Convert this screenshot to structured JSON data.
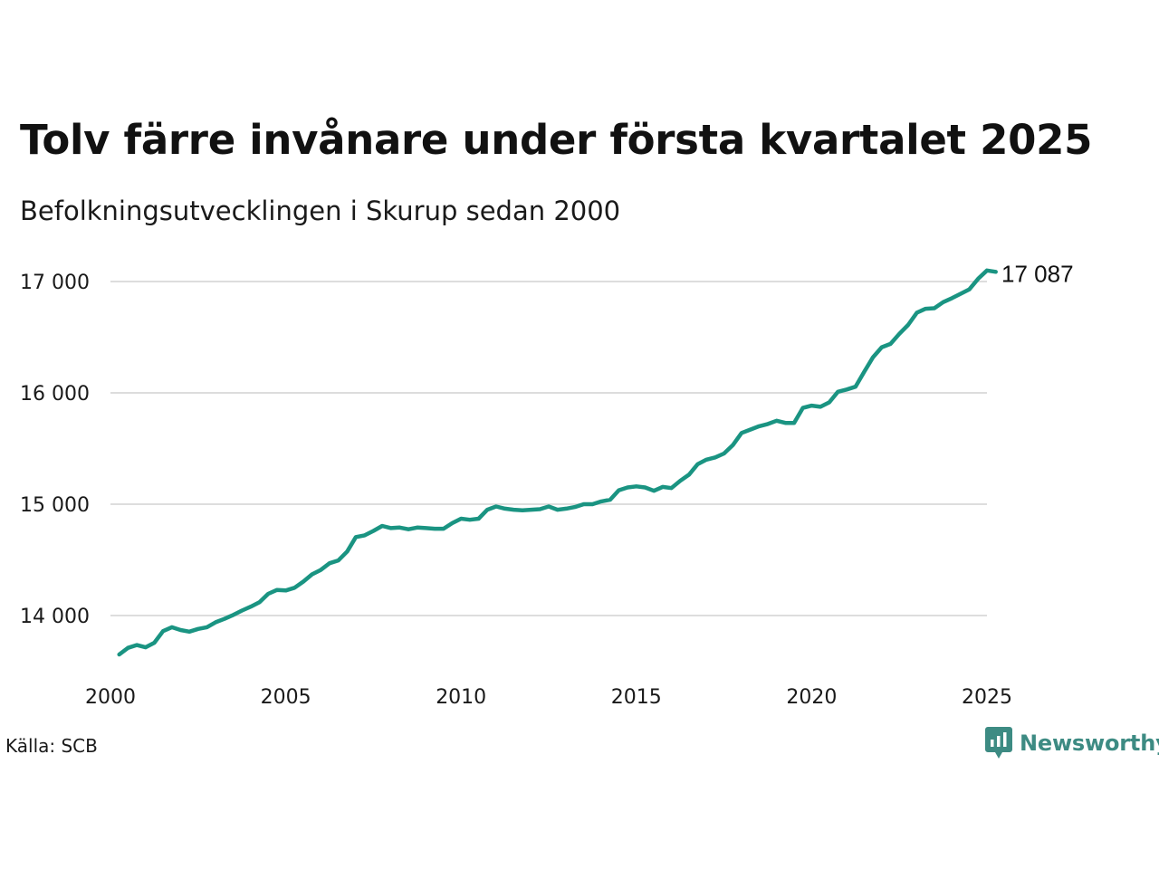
{
  "title": "Tolv färre invånare under första kvartalet 2025",
  "subtitle": "Befolkningsutvecklingen i Skurup sedan 2000",
  "source": "Källa: SCB",
  "brand": {
    "name": "Newsworthy",
    "icon": "chart-bubble-icon",
    "color": "#3d8b83"
  },
  "colors": {
    "line": "#1a9482",
    "grid": "#dddddd"
  },
  "chart_data": {
    "type": "line",
    "title": "Tolv färre invånare under första kvartalet 2025",
    "subtitle": "Befolkningsutvecklingen i Skurup sedan 2000",
    "xlabel": "",
    "ylabel": "",
    "xlim": [
      2000,
      2025
    ],
    "ylim": [
      13500,
      17200
    ],
    "x_ticks": [
      2000,
      2005,
      2010,
      2015,
      2020,
      2025
    ],
    "x_tick_labels": [
      "2000",
      "2005",
      "2010",
      "2015",
      "2020",
      "2025"
    ],
    "y_ticks": [
      14000,
      15000,
      16000,
      17000
    ],
    "y_tick_labels": [
      "14 000",
      "15 000",
      "16 000",
      "17 000"
    ],
    "grid": "horizontal",
    "legend": "none",
    "end_label": "17 087",
    "series": [
      {
        "x": [
          2000.25,
          2000.5,
          2000.75,
          2001.0,
          2001.25,
          2001.5,
          2001.75,
          2002.0,
          2002.25,
          2002.5,
          2002.75,
          2003.0,
          2003.25,
          2003.5,
          2003.75,
          2004.0,
          2004.25,
          2004.5,
          2004.75,
          2005.0,
          2005.25,
          2005.5,
          2005.75,
          2006.0,
          2006.25,
          2006.5,
          2006.75,
          2007.0,
          2007.25,
          2007.5,
          2007.75,
          2008.0,
          2008.25,
          2008.5,
          2008.75,
          2009.0,
          2009.25,
          2009.5,
          2009.75,
          2010.0,
          2010.25,
          2010.5,
          2010.75,
          2011.0,
          2011.25,
          2011.5,
          2011.75,
          2012.0,
          2012.25,
          2012.5,
          2012.75,
          2013.0,
          2013.25,
          2013.5,
          2013.75,
          2014.0,
          2014.25,
          2014.5,
          2014.75,
          2015.0,
          2015.25,
          2015.5,
          2015.75,
          2016.0,
          2016.25,
          2016.5,
          2016.75,
          2017.0,
          2017.25,
          2017.5,
          2017.75,
          2018.0,
          2018.25,
          2018.5,
          2018.75,
          2019.0,
          2019.25,
          2019.5,
          2019.75,
          2020.0,
          2020.25,
          2020.5,
          2020.75,
          2021.0,
          2021.25,
          2021.5,
          2021.75,
          2022.0,
          2022.25,
          2022.5,
          2022.75,
          2023.0,
          2023.25,
          2023.5,
          2023.75,
          2024.0,
          2024.25,
          2024.5,
          2024.75,
          2025.0,
          2025.25
        ],
        "values": [
          13650,
          13710,
          13735,
          13715,
          13755,
          13860,
          13895,
          13870,
          13855,
          13880,
          13895,
          13940,
          13970,
          14005,
          14045,
          14080,
          14120,
          14195,
          14230,
          14225,
          14250,
          14305,
          14370,
          14410,
          14470,
          14495,
          14575,
          14705,
          14720,
          14760,
          14805,
          14785,
          14790,
          14775,
          14790,
          14785,
          14780,
          14780,
          14830,
          14870,
          14860,
          14870,
          14950,
          14980,
          14960,
          14950,
          14945,
          14950,
          14955,
          14980,
          14950,
          14960,
          14975,
          15000,
          15000,
          15025,
          15040,
          15125,
          15150,
          15160,
          15150,
          15120,
          15155,
          15145,
          15210,
          15265,
          15360,
          15400,
          15420,
          15455,
          15530,
          15640,
          15670,
          15700,
          15720,
          15750,
          15730,
          15730,
          15865,
          15885,
          15875,
          15915,
          16010,
          16030,
          16055,
          16190,
          16320,
          16410,
          16440,
          16530,
          16610,
          16720,
          16755,
          16760,
          16815,
          16850,
          16890,
          16930,
          17025,
          17099,
          17087
        ]
      }
    ]
  }
}
